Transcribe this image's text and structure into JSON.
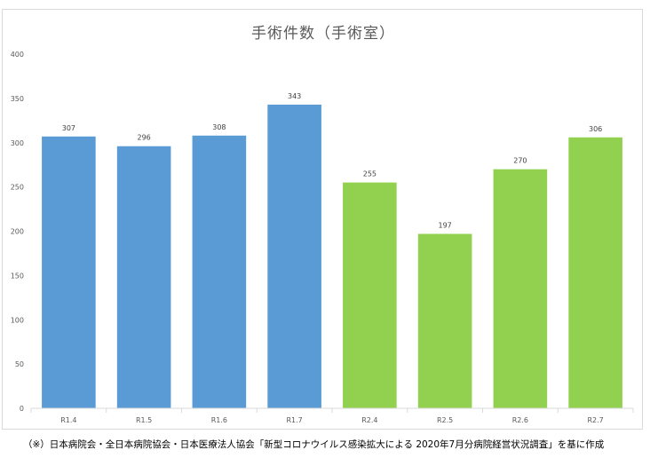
{
  "chart_data": {
    "type": "bar",
    "title": "手術件数（手術室）",
    "categories": [
      "R1.4",
      "R1.5",
      "R1.6",
      "R1.7",
      "R2.4",
      "R2.5",
      "R2.6",
      "R2.7"
    ],
    "values": [
      307,
      296,
      308,
      343,
      255,
      197,
      270,
      306
    ],
    "bar_colors": [
      "#5b9bd5",
      "#5b9bd5",
      "#5b9bd5",
      "#5b9bd5",
      "#92d050",
      "#92d050",
      "#92d050",
      "#92d050"
    ],
    "ylim": [
      0,
      400
    ],
    "yticks": [
      0,
      50,
      100,
      150,
      200,
      250,
      300,
      350,
      400
    ],
    "xlabel": "",
    "ylabel": "",
    "grid": false,
    "data_labels": true
  },
  "footnote": "（※）日本病院会・全日本病院協会・日本医療法人協会「新型コロナウイルス感染拡大による 2020年7月分病院経営状況調査」を基に作成"
}
